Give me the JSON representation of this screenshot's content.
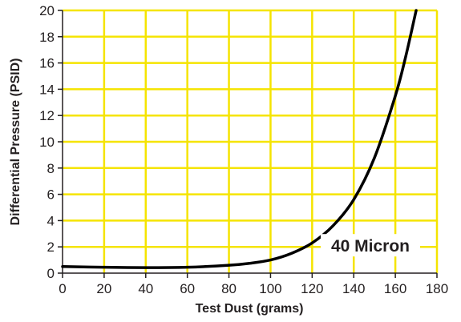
{
  "chart_data": {
    "type": "line",
    "title": "",
    "xlabel": "Test Dust (grams)",
    "ylabel": "Differential Pressure (PSID)",
    "xlim": [
      0,
      180
    ],
    "ylim": [
      0,
      20
    ],
    "xticks": [
      0,
      20,
      40,
      60,
      80,
      100,
      120,
      140,
      160,
      180
    ],
    "yticks": [
      0,
      2,
      4,
      6,
      8,
      10,
      12,
      14,
      16,
      18,
      20
    ],
    "grid": true,
    "legend": "none",
    "colors": {
      "plot_background": "#ffffff",
      "grid": "#f5e400",
      "axis": "#231f20",
      "line": "#000000"
    },
    "annotations": [
      {
        "text": "40 Micron",
        "x": 148,
        "y": 2
      }
    ],
    "series": [
      {
        "x": [
          0,
          20,
          40,
          60,
          80,
          90,
          100,
          110,
          120,
          130,
          140,
          150,
          160,
          165,
          170
        ],
        "y": [
          0.5,
          0.45,
          0.42,
          0.45,
          0.6,
          0.75,
          1.0,
          1.5,
          2.3,
          3.6,
          5.6,
          8.8,
          13.5,
          16.5,
          20
        ]
      }
    ]
  }
}
